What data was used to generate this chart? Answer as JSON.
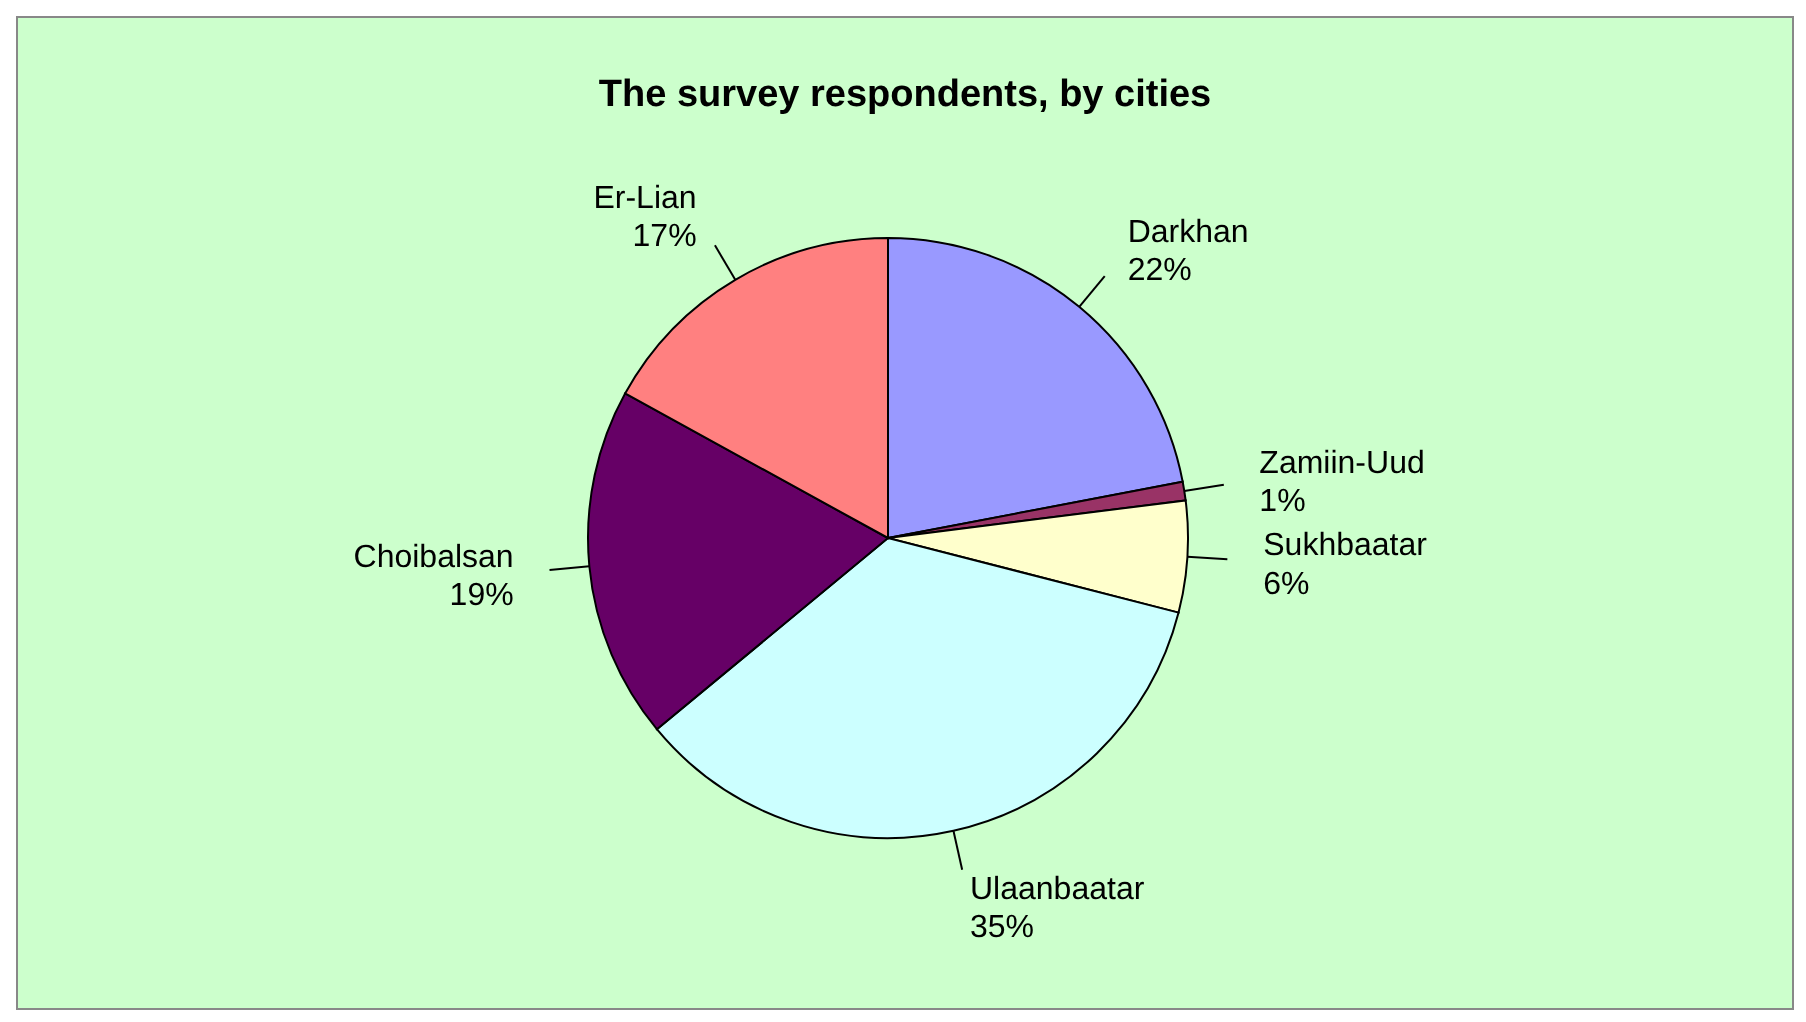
{
  "chart_data": {
    "type": "pie",
    "title": "The survey respondents, by cities",
    "categories": [
      "Darkhan",
      "Zamiin-Uud",
      "Sukhbaatar",
      "Ulaanbaatar",
      "Choibalsan",
      "Er-Lian"
    ],
    "values": [
      22,
      1,
      6,
      35,
      19,
      17
    ],
    "value_labels": [
      "22%",
      "1%",
      "6%",
      "35%",
      "19%",
      "17%"
    ],
    "colors": [
      "#9999ff",
      "#993366",
      "#ffffcc",
      "#ccffff",
      "#660066",
      "#ff8080"
    ],
    "legend": false
  }
}
